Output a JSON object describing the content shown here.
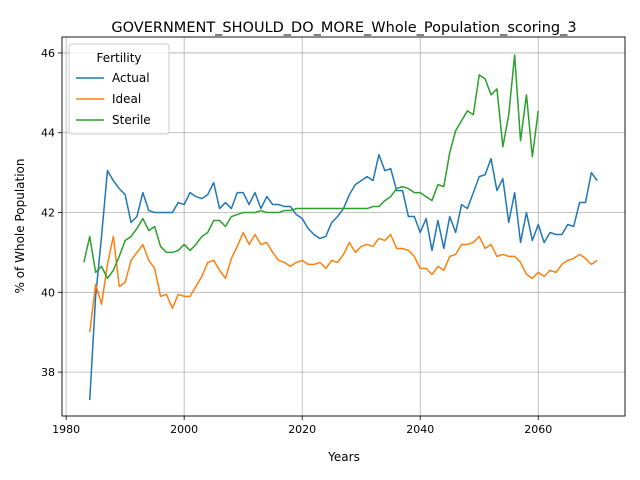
{
  "chart_data": {
    "type": "line",
    "title": "GOVERNMENT_SHOULD_DO_MORE_Whole_Population_scoring_3",
    "xlabel": "Years",
    "ylabel": "% of Whole Population",
    "xlim": [
      1979.3,
      2074.7
    ],
    "ylim": [
      36.9,
      46.4
    ],
    "xticks": [
      1980,
      2000,
      2020,
      2040,
      2060
    ],
    "yticks": [
      38,
      40,
      42,
      44,
      46
    ],
    "grid": true,
    "legend": {
      "title": "Fertility",
      "placement": "top-left"
    },
    "series": [
      {
        "name": "Actual",
        "color": "#1f77b4",
        "x": [
          1984,
          1985,
          1986,
          1987,
          1988,
          1989,
          1990,
          1991,
          1992,
          1993,
          1994,
          1995,
          1996,
          1997,
          1998,
          1999,
          2000,
          2001,
          2002,
          2003,
          2004,
          2005,
          2006,
          2007,
          2008,
          2009,
          2010,
          2011,
          2012,
          2013,
          2014,
          2015,
          2016,
          2017,
          2018,
          2019,
          2020,
          2021,
          2022,
          2023,
          2024,
          2025,
          2026,
          2027,
          2028,
          2029,
          2030,
          2031,
          2032,
          2033,
          2034,
          2035,
          2036,
          2037,
          2038,
          2039,
          2040,
          2041,
          2042,
          2043,
          2044,
          2045,
          2046,
          2047,
          2048,
          2049,
          2050,
          2051,
          2052,
          2053,
          2054,
          2055,
          2056,
          2057,
          2058,
          2059,
          2060,
          2061,
          2062,
          2063,
          2064,
          2065,
          2066,
          2067,
          2068,
          2069,
          2070
        ],
        "values": [
          37.3,
          39.9,
          41.4,
          43.05,
          42.8,
          42.6,
          42.45,
          41.75,
          41.9,
          42.5,
          42.05,
          42.0,
          42.0,
          42.0,
          42.0,
          42.25,
          42.2,
          42.5,
          42.4,
          42.35,
          42.45,
          42.75,
          42.1,
          42.25,
          42.1,
          42.5,
          42.5,
          42.2,
          42.5,
          42.1,
          42.4,
          42.2,
          42.2,
          42.15,
          42.15,
          41.95,
          41.85,
          41.6,
          41.45,
          41.35,
          41.4,
          41.75,
          41.9,
          42.1,
          42.45,
          42.7,
          42.8,
          42.9,
          42.8,
          43.45,
          43.05,
          43.1,
          42.55,
          42.55,
          41.9,
          41.9,
          41.5,
          41.85,
          41.05,
          41.8,
          41.1,
          41.9,
          41.5,
          42.2,
          42.1,
          42.5,
          42.9,
          42.95,
          43.35,
          42.55,
          42.85,
          41.75,
          42.5,
          41.25,
          42.0,
          41.3,
          41.7,
          41.25,
          41.5,
          41.45,
          41.45,
          41.7,
          41.65,
          42.25,
          42.25,
          43.0,
          42.8
        ]
      },
      {
        "name": "Ideal",
        "color": "#ff7f0e",
        "x": [
          1984,
          1985,
          1986,
          1987,
          1988,
          1989,
          1990,
          1991,
          1992,
          1993,
          1994,
          1995,
          1996,
          1997,
          1998,
          1999,
          2000,
          2001,
          2002,
          2003,
          2004,
          2005,
          2006,
          2007,
          2008,
          2009,
          2010,
          2011,
          2012,
          2013,
          2014,
          2015,
          2016,
          2017,
          2018,
          2019,
          2020,
          2021,
          2022,
          2023,
          2024,
          2025,
          2026,
          2027,
          2028,
          2029,
          2030,
          2031,
          2032,
          2033,
          2034,
          2035,
          2036,
          2037,
          2038,
          2039,
          2040,
          2041,
          2042,
          2043,
          2044,
          2045,
          2046,
          2047,
          2048,
          2049,
          2050,
          2051,
          2052,
          2053,
          2054,
          2055,
          2056,
          2057,
          2058,
          2059,
          2060,
          2061,
          2062,
          2063,
          2064,
          2065,
          2066,
          2067,
          2068,
          2069,
          2070
        ],
        "values": [
          39.0,
          40.2,
          39.7,
          40.7,
          41.4,
          40.15,
          40.25,
          40.8,
          41.0,
          41.2,
          40.8,
          40.6,
          39.9,
          39.95,
          39.6,
          39.95,
          39.9,
          39.9,
          40.15,
          40.4,
          40.75,
          40.8,
          40.55,
          40.35,
          40.85,
          41.15,
          41.5,
          41.2,
          41.45,
          41.2,
          41.25,
          41.0,
          40.8,
          40.75,
          40.65,
          40.75,
          40.8,
          40.7,
          40.7,
          40.75,
          40.6,
          40.8,
          40.75,
          40.95,
          41.25,
          41.0,
          41.15,
          41.2,
          41.15,
          41.35,
          41.3,
          41.45,
          41.1,
          41.1,
          41.05,
          40.9,
          40.6,
          40.6,
          40.45,
          40.65,
          40.55,
          40.9,
          40.95,
          41.2,
          41.2,
          41.25,
          41.4,
          41.1,
          41.2,
          40.9,
          40.95,
          40.9,
          40.9,
          40.75,
          40.45,
          40.35,
          40.5,
          40.4,
          40.55,
          40.5,
          40.7,
          40.8,
          40.85,
          40.95,
          40.85,
          40.7,
          40.8
        ]
      },
      {
        "name": "Sterile",
        "color": "#2ca02c",
        "x": [
          1983,
          1984,
          1985,
          1986,
          1987,
          1988,
          1989,
          1990,
          1991,
          1992,
          1993,
          1994,
          1995,
          1996,
          1997,
          1998,
          1999,
          2000,
          2001,
          2002,
          2003,
          2004,
          2005,
          2006,
          2007,
          2008,
          2009,
          2010,
          2011,
          2012,
          2013,
          2014,
          2015,
          2016,
          2017,
          2018,
          2019,
          2020,
          2021,
          2022,
          2023,
          2024,
          2025,
          2026,
          2027,
          2028,
          2029,
          2030,
          2031,
          2032,
          2033,
          2034,
          2035,
          2036,
          2037,
          2038,
          2039,
          2040,
          2041,
          2042,
          2043,
          2044,
          2045,
          2046,
          2047,
          2048,
          2049,
          2050,
          2051,
          2052,
          2053,
          2054,
          2055,
          2056,
          2057,
          2058,
          2059,
          2060
        ],
        "values": [
          40.75,
          41.4,
          40.5,
          40.65,
          40.35,
          40.55,
          40.9,
          41.3,
          41.4,
          41.6,
          41.85,
          41.55,
          41.65,
          41.15,
          41.0,
          41.0,
          41.05,
          41.2,
          41.05,
          41.2,
          41.4,
          41.5,
          41.8,
          41.8,
          41.65,
          41.9,
          41.95,
          42.0,
          42.0,
          42.0,
          42.05,
          42.0,
          42.0,
          42.0,
          42.05,
          42.05,
          42.1,
          42.1,
          42.1,
          42.1,
          42.1,
          42.1,
          42.1,
          42.1,
          42.1,
          42.1,
          42.1,
          42.1,
          42.1,
          42.15,
          42.15,
          42.3,
          42.4,
          42.6,
          42.65,
          42.6,
          42.5,
          42.5,
          42.4,
          42.3,
          42.7,
          42.65,
          43.5,
          44.05,
          44.3,
          44.55,
          44.45,
          45.45,
          45.35,
          44.95,
          45.1,
          43.65,
          44.45,
          45.95,
          43.8,
          44.95,
          43.4,
          44.55
        ]
      }
    ]
  }
}
